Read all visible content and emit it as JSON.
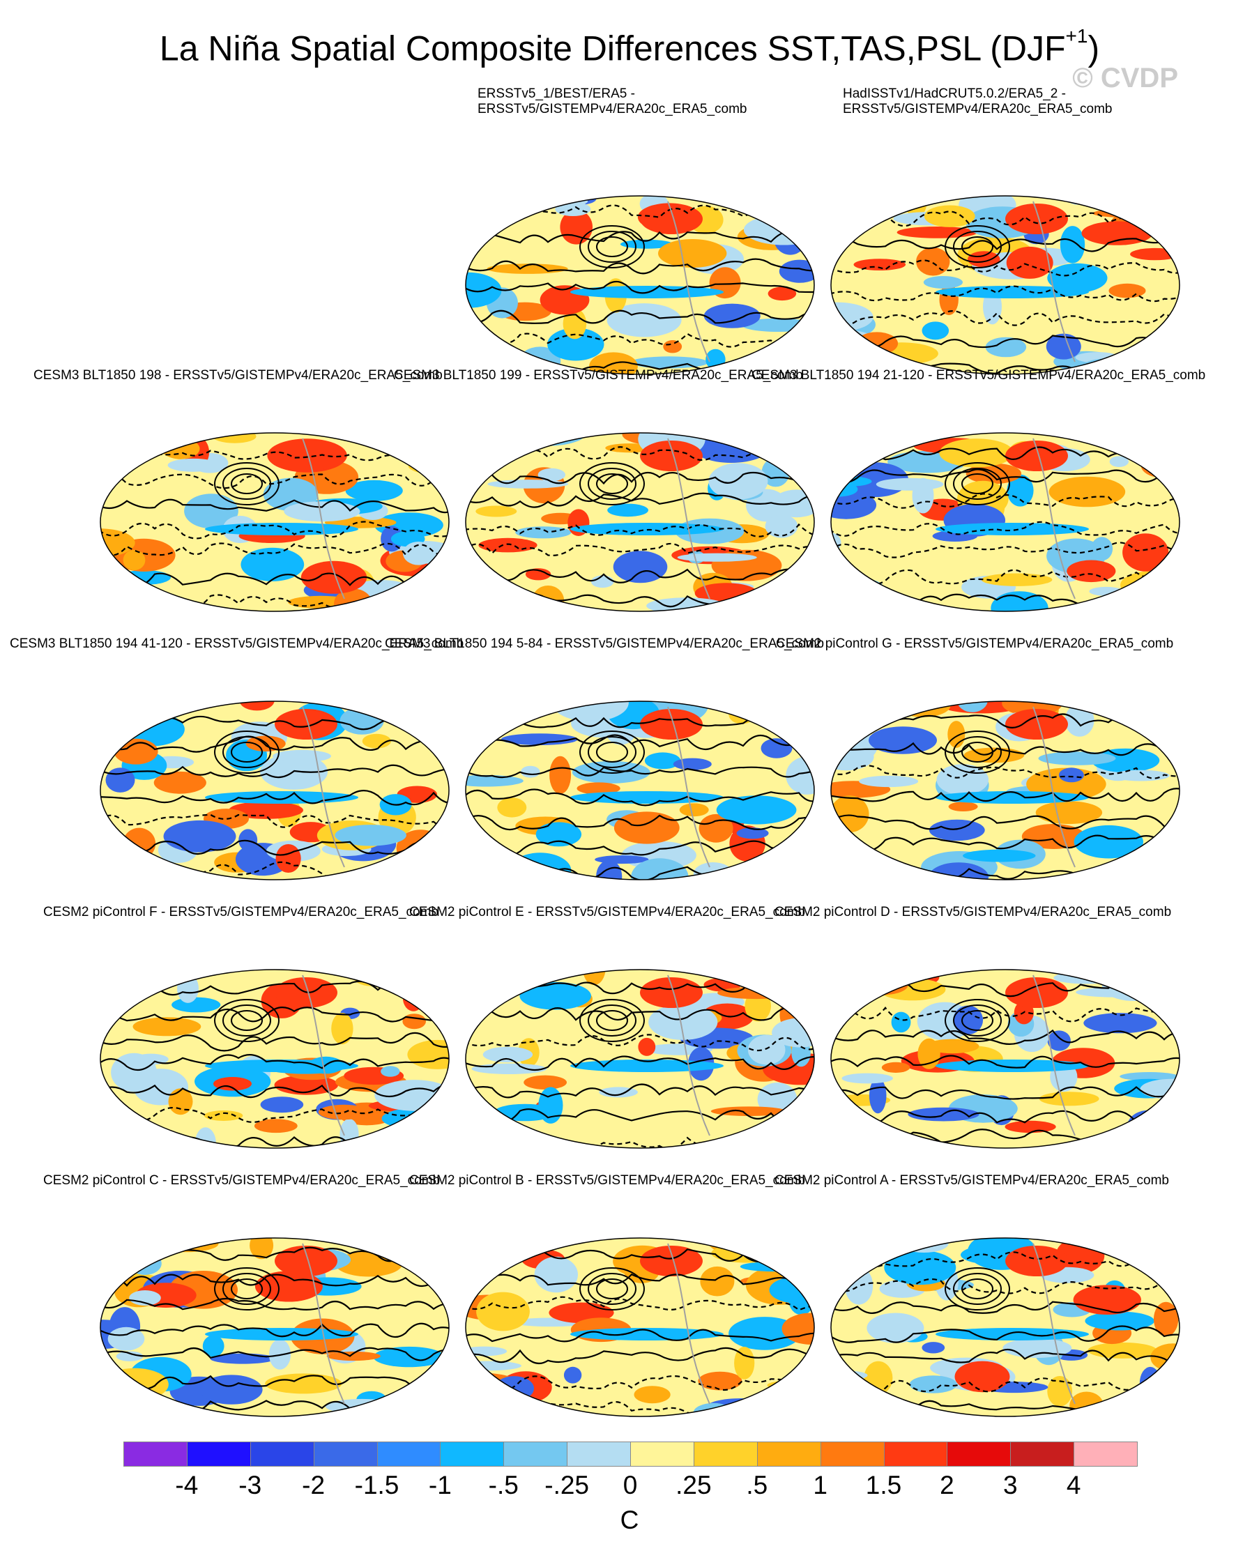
{
  "title": {
    "main": "La Niña Spatial Composite Differences SST,TAS,PSL (DJF",
    "superscript": "+1",
    "close": ")"
  },
  "watermark": "© CVDP",
  "panels": [
    {
      "label": "ERSSTv5_1/BEST/ERA5 -\nERSSTv5/GISTEMPv4/ERA20c_ERA5_comb"
    },
    {
      "label": "HadISSTv1/HadCRUT5.0.2/ERA5_2 -\nERSSTv5/GISTEMPv4/ERA20c_ERA5_comb"
    },
    {
      "label": "CESM3 BLT1850 198 - ERSSTv5/GISTEMPv4/ERA20c_ERA5_comb"
    },
    {
      "label": "CESM3 BLT1850 199 - ERSSTv5/GISTEMPv4/ERA20c_ERA5_comb"
    },
    {
      "label": "CESM3 BLT1850 194 21-120 - ERSSTv5/GISTEMPv4/ERA20c_ERA5_comb"
    },
    {
      "label": "CESM3 BLT1850 194 41-120 - ERSSTv5/GISTEMPv4/ERA20c_ERA5_comb"
    },
    {
      "label": "CESM3 BLT1850 194 5-84 - ERSSTv5/GISTEMPv4/ERA20c_ERA5_comb"
    },
    {
      "label": "CESM2 piControl G - ERSSTv5/GISTEMPv4/ERA20c_ERA5_comb"
    },
    {
      "label": "CESM2 piControl F - ERSSTv5/GISTEMPv4/ERA20c_ERA5_comb"
    },
    {
      "label": "CESM2 piControl E - ERSSTv5/GISTEMPv4/ERA20c_ERA5_comb"
    },
    {
      "label": "CESM2 piControl D - ERSSTv5/GISTEMPv4/ERA20c_ERA5_comb"
    },
    {
      "label": "CESM2 piControl C - ERSSTv5/GISTEMPv4/ERA20c_ERA5_comb"
    },
    {
      "label": "CESM2 piControl B - ERSSTv5/GISTEMPv4/ERA20c_ERA5_comb"
    },
    {
      "label": "CESM2 piControl A - ERSSTv5/GISTEMPv4/ERA20c_ERA5_comb"
    }
  ],
  "colorbar": {
    "colors": [
      "#8a2be2",
      "#1f10ff",
      "#2a45e8",
      "#3a6ae8",
      "#2f8cff",
      "#10b8ff",
      "#74c8f0",
      "#b4ddf2",
      "#fff599",
      "#ffd22a",
      "#ffac10",
      "#ff7a10",
      "#ff3a12",
      "#e60a0a",
      "#c81e1e",
      "#ffb0b8"
    ],
    "ticks": [
      "-4",
      "-3",
      "-2",
      "-1.5",
      "-1",
      "-.5",
      "-.25",
      "0",
      ".25",
      ".5",
      "1",
      "1.5",
      "2",
      "3",
      "4"
    ],
    "unit": "C"
  },
  "map_colors": {
    "warm": "#fff599",
    "cool": "#b4ddf2",
    "contour": "#000000",
    "coast": "#a0a0a0"
  }
}
